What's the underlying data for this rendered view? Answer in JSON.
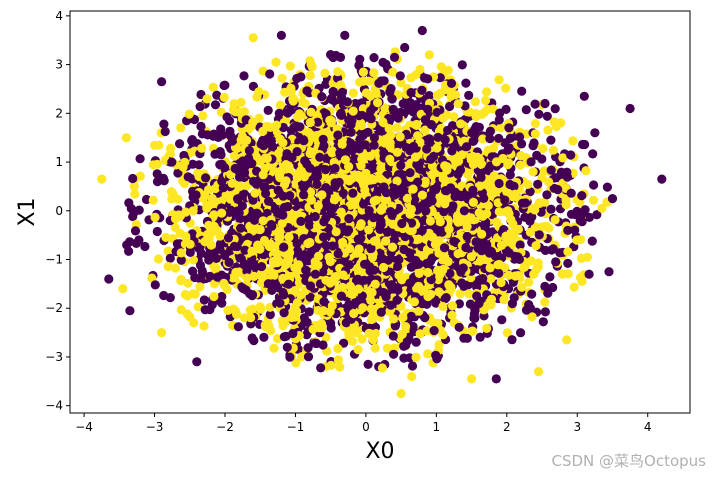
{
  "chart_data": {
    "type": "scatter",
    "title": "",
    "xlabel": "X0",
    "ylabel": "X1",
    "xlim": [
      -4.2,
      4.6
    ],
    "ylim": [
      -4.15,
      4.1
    ],
    "xticks": [
      -4,
      -3,
      -2,
      -1,
      0,
      1,
      2,
      3,
      4
    ],
    "yticks": [
      -4,
      -3,
      -2,
      -1,
      0,
      1,
      2,
      3,
      4
    ],
    "grid": false,
    "distribution": {
      "center": [
        0,
        0
      ],
      "std": [
        1.35,
        1.3
      ],
      "clip": [
        3.5,
        3.3
      ],
      "count": 5000
    },
    "series": [
      {
        "color": "#440154"
      },
      {
        "color": "#fde725"
      }
    ],
    "outlier_points": [
      {
        "x": -3.75,
        "y": 0.65,
        "s": 1
      },
      {
        "x": -3.65,
        "y": -1.4,
        "s": 0
      },
      {
        "x": -3.35,
        "y": -2.05,
        "s": 0
      },
      {
        "x": -3.4,
        "y": 1.5,
        "s": 1
      },
      {
        "x": -3.45,
        "y": -1.6,
        "s": 1
      },
      {
        "x": -2.9,
        "y": 2.65,
        "s": 0
      },
      {
        "x": -2.9,
        "y": -2.5,
        "s": 1
      },
      {
        "x": -2.4,
        "y": -3.1,
        "s": 0
      },
      {
        "x": -1.6,
        "y": 3.55,
        "s": 1
      },
      {
        "x": -1.2,
        "y": 3.6,
        "s": 0
      },
      {
        "x": -0.3,
        "y": 3.6,
        "s": 0
      },
      {
        "x": 0.55,
        "y": 3.35,
        "s": 0
      },
      {
        "x": 0.8,
        "y": 3.7,
        "s": 0
      },
      {
        "x": 0.9,
        "y": 3.2,
        "s": 1
      },
      {
        "x": 0.5,
        "y": -3.75,
        "s": 1
      },
      {
        "x": 0.65,
        "y": -3.4,
        "s": 1
      },
      {
        "x": 1.5,
        "y": -3.45,
        "s": 1
      },
      {
        "x": 1.85,
        "y": -3.45,
        "s": 0
      },
      {
        "x": 2.45,
        "y": -3.3,
        "s": 1
      },
      {
        "x": 3.1,
        "y": 2.35,
        "s": 0
      },
      {
        "x": 3.25,
        "y": 1.6,
        "s": 0
      },
      {
        "x": 3.45,
        "y": -1.25,
        "s": 0
      },
      {
        "x": 3.5,
        "y": 0.25,
        "s": 0
      },
      {
        "x": 3.75,
        "y": 2.1,
        "s": 0
      },
      {
        "x": 4.2,
        "y": 0.65,
        "s": 0
      },
      {
        "x": 2.85,
        "y": -2.65,
        "s": 1
      },
      {
        "x": 3.35,
        "y": 0.05,
        "s": 1
      }
    ]
  },
  "watermark": "CSDN @菜鸟Octopus"
}
